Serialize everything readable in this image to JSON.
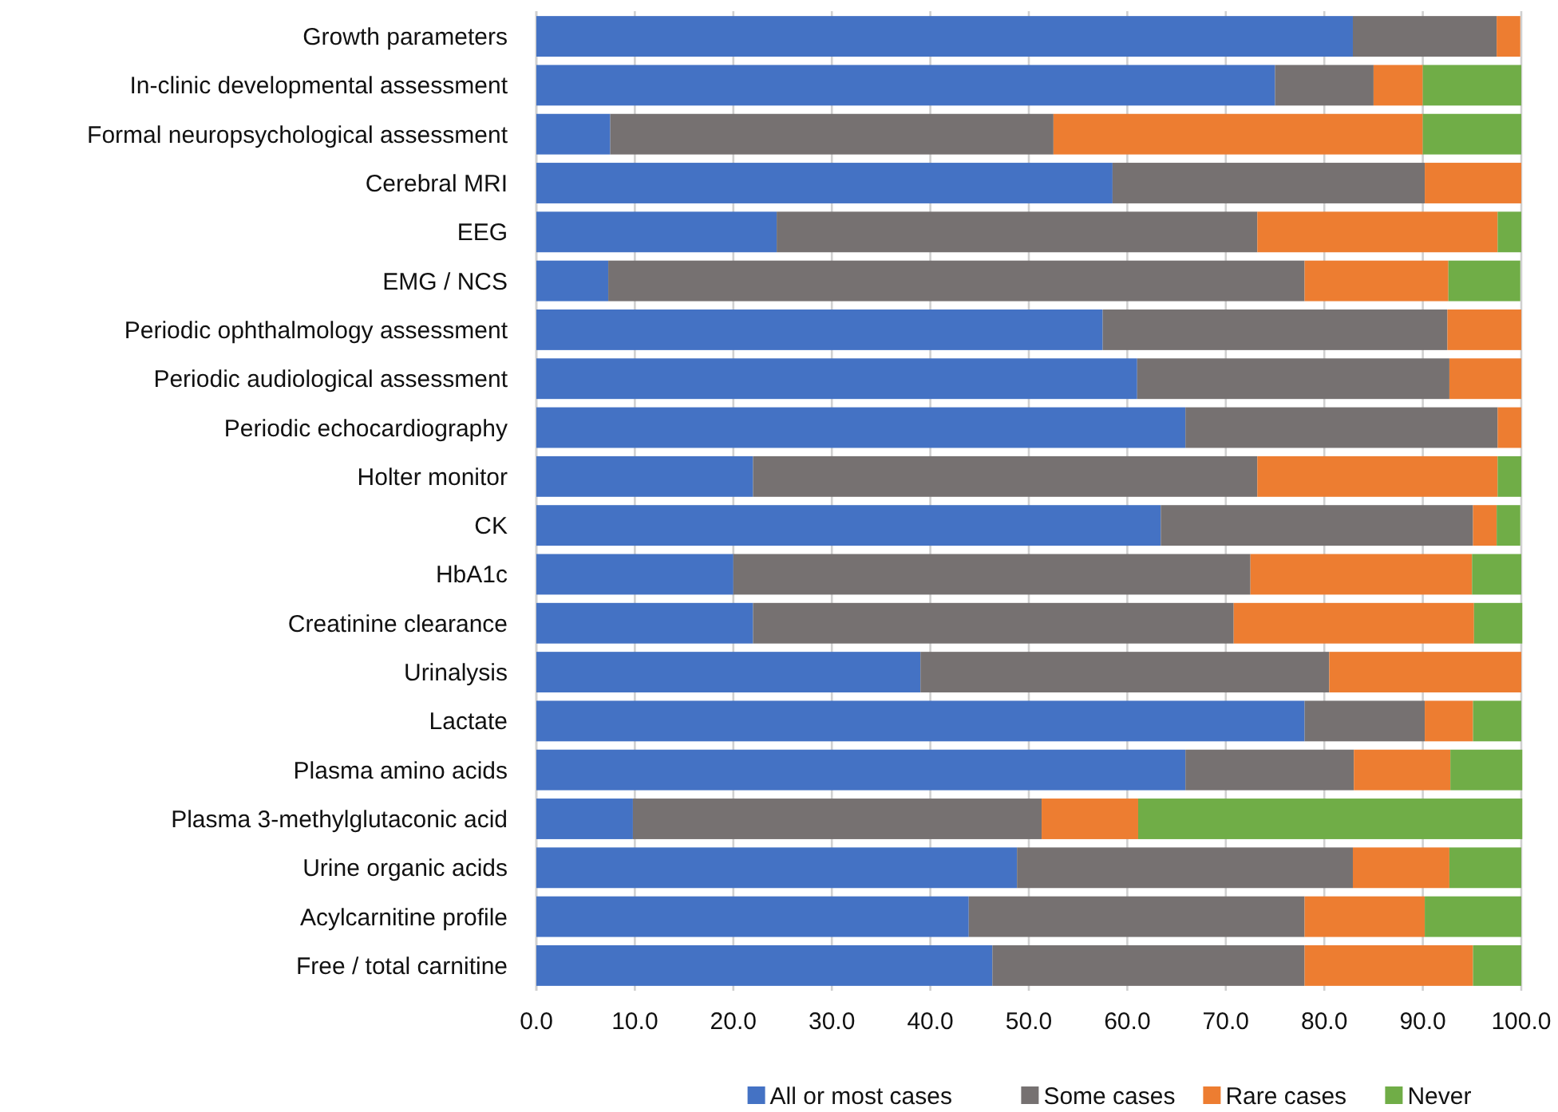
{
  "chart_data": {
    "type": "bar",
    "orientation": "horizontal",
    "stacked": true,
    "categories": [
      "Growth parameters",
      "In-clinic developmental assessment",
      "Formal neuropsychological assessment",
      "Cerebral MRI",
      "EEG",
      "EMG / NCS",
      "Periodic ophthalmology assessment",
      "Periodic audiological assessment",
      "Periodic echocardiography",
      "Holter monitor",
      "CK",
      "HbA1c",
      "Creatinine clearance",
      "Urinalysis",
      "Lactate",
      "Plasma amino acids",
      "Plasma 3-methylglutaconic acid",
      "Urine organic acids",
      "Acylcarnitine profile",
      "Free / total carnitine"
    ],
    "series": [
      {
        "name": "All or most cases",
        "color": "#4472c4",
        "values": [
          82.9,
          75,
          7.5,
          58.5,
          24.4,
          7.3,
          57.5,
          61,
          65.9,
          22,
          63.4,
          20,
          22,
          39,
          78,
          65.9,
          9.8,
          48.8,
          43.9,
          46.3
        ]
      },
      {
        "name": "Some cases",
        "color": "#767171",
        "values": [
          14.6,
          10,
          45,
          31.7,
          48.8,
          70.7,
          35,
          31.7,
          31.7,
          51.2,
          31.7,
          52.5,
          48.8,
          41.5,
          12.2,
          17.1,
          41.5,
          34.1,
          34.1,
          31.7
        ]
      },
      {
        "name": "Rare cases",
        "color": "#ed7d31",
        "values": [
          2.4,
          5,
          37.5,
          9.8,
          24.4,
          14.6,
          7.5,
          7.3,
          2.4,
          24.4,
          2.4,
          22.5,
          24.4,
          19.5,
          4.9,
          9.8,
          9.8,
          9.8,
          12.2,
          17.1
        ]
      },
      {
        "name": "Never",
        "color": "#70ad47",
        "values": [
          0,
          10,
          10,
          0,
          2.4,
          7.3,
          0,
          0,
          0,
          2.4,
          2.4,
          5,
          4.9,
          0,
          4.9,
          7.3,
          39,
          7.3,
          9.8,
          4.9
        ]
      }
    ],
    "xlim": [
      0,
      100
    ],
    "xticks": [
      {
        "value": 0,
        "label": "0.0"
      },
      {
        "value": 10,
        "label": "10.0"
      },
      {
        "value": 20,
        "label": "20.0"
      },
      {
        "value": 30,
        "label": "30.0"
      },
      {
        "value": 40,
        "label": "40.0"
      },
      {
        "value": 50,
        "label": "50.0"
      },
      {
        "value": 60,
        "label": "60.0"
      },
      {
        "value": 70,
        "label": "70.0"
      },
      {
        "value": 80,
        "label": "80.0"
      },
      {
        "value": 90,
        "label": "90.0"
      },
      {
        "value": 100,
        "label": "100.0"
      }
    ],
    "grid": "x",
    "legend": "bottom"
  }
}
